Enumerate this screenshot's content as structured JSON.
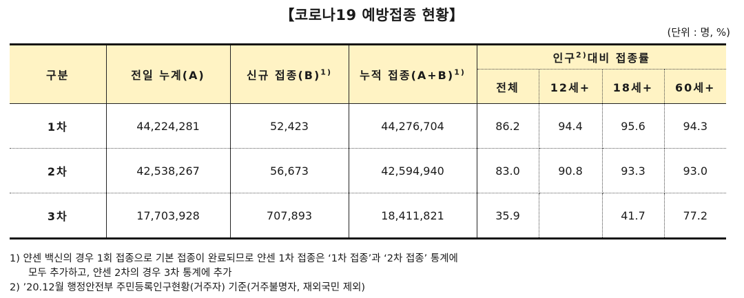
{
  "title": "【코로나19 예방접종 현황】",
  "unit": "(단위 : 명, %)",
  "header": {
    "category": "구분",
    "prev_cumulative": "전일 누계(A)",
    "new_vacc": "신규 접종(B)",
    "new_vacc_sup": "1)",
    "cumulative": "누적 접종(A+B)",
    "cumulative_sup": "1)",
    "rate_group_a": "인구",
    "rate_group_sup": "2)",
    "rate_group_b": "대비 접종률",
    "rate_cols": [
      "전체",
      "12세+",
      "18세+",
      "60세+"
    ]
  },
  "rows": [
    {
      "label": "1차",
      "prev": "44,224,281",
      "new": "52,423",
      "cum": "44,276,704",
      "rates": [
        "86.2",
        "94.4",
        "95.6",
        "94.3"
      ]
    },
    {
      "label": "2차",
      "prev": "42,538,267",
      "new": "56,673",
      "cum": "42,594,940",
      "rates": [
        "83.0",
        "90.8",
        "93.3",
        "93.0"
      ]
    },
    {
      "label": "3차",
      "prev": "17,703,928",
      "new": "707,893",
      "cum": "18,411,821",
      "rates": [
        "35.9",
        "",
        "41.7",
        "77.2"
      ]
    }
  ],
  "notes": [
    "1) 얀센 백신의 경우 1회 접종으로 기본 접종이 완료되므로 얀센 1차 접종은 ‘1차 접종’과 ‘2차 접종’ 통계에",
    "모두 추가하고, 얀센 2차의 경우 3차 통계에 추가",
    "2) ’20.12월 행정안전부 주민등록인구현황(거주자) 기준(거주불명자, 재외국민 제외)"
  ]
}
